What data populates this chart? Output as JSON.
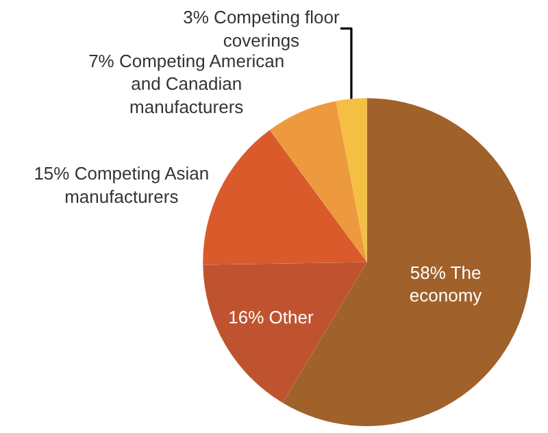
{
  "chart_data": {
    "type": "pie",
    "categories": [
      "58% The economy",
      "16% Other",
      "15% Competing Asian manufacturers",
      "7% Competing American and Canadian manufacturers",
      "3% Competing floor coverings"
    ],
    "values": [
      58,
      16,
      15,
      7,
      3
    ],
    "colors": [
      "#a0612a",
      "#c0532f",
      "#da5a2c",
      "#ed9a3e",
      "#f4bf42"
    ],
    "legend": false
  }
}
